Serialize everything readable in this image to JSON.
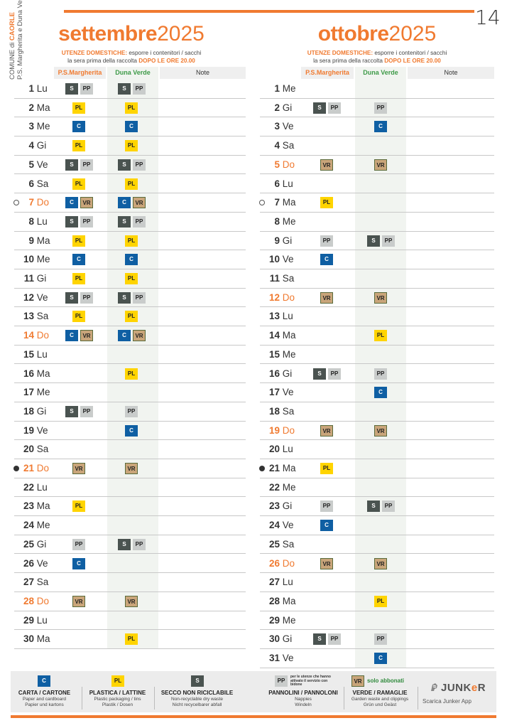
{
  "page_number": "14",
  "side": {
    "comune": "COMUNE di",
    "town": "CAORLE",
    "areas": "P.S. Margherita e Duna Verde"
  },
  "notice": {
    "lead": "UTENZE DOMESTICHE:",
    "text1": " esporre i contenitori / sacchi",
    "text2": "la sera prima della raccolta ",
    "time": "DOPO LE ORE 20.00"
  },
  "headers": {
    "ps": "P.S.Margherita",
    "dv": "Duna Verde",
    "note": "Note"
  },
  "colors": {
    "accent": "#f07a30",
    "green": "#3d9a47",
    "secco": "#4a5350",
    "pannolini": "#c9cccb",
    "plastica": "#ffd400",
    "carta": "#0f5fa3",
    "verde": "#c9a57a"
  },
  "months": [
    {
      "name": "settembre",
      "year": "2025",
      "days": [
        {
          "n": "1",
          "d": "Lu",
          "ps": [
            "S",
            "PP"
          ],
          "dv": [
            "S",
            "PP"
          ]
        },
        {
          "n": "2",
          "d": "Ma",
          "ps": [
            "PL"
          ],
          "dv": [
            "PL"
          ]
        },
        {
          "n": "3",
          "d": "Me",
          "ps": [
            "C"
          ],
          "dv": [
            "C"
          ]
        },
        {
          "n": "4",
          "d": "Gi",
          "ps": [
            "PL"
          ],
          "dv": [
            "PL"
          ]
        },
        {
          "n": "5",
          "d": "Ve",
          "ps": [
            "S",
            "PP"
          ],
          "dv": [
            "S",
            "PP"
          ]
        },
        {
          "n": "6",
          "d": "Sa",
          "ps": [
            "PL"
          ],
          "dv": [
            "PL"
          ]
        },
        {
          "n": "7",
          "d": "Do",
          "sun": true,
          "mark": "empty",
          "ps": [
            "C",
            "VR"
          ],
          "dv": [
            "C",
            "VR"
          ]
        },
        {
          "n": "8",
          "d": "Lu",
          "ps": [
            "S",
            "PP"
          ],
          "dv": [
            "S",
            "PP"
          ]
        },
        {
          "n": "9",
          "d": "Ma",
          "ps": [
            "PL"
          ],
          "dv": [
            "PL"
          ]
        },
        {
          "n": "10",
          "d": "Me",
          "ps": [
            "C"
          ],
          "dv": [
            "C"
          ]
        },
        {
          "n": "11",
          "d": "Gi",
          "ps": [
            "PL"
          ],
          "dv": [
            "PL"
          ]
        },
        {
          "n": "12",
          "d": "Ve",
          "ps": [
            "S",
            "PP"
          ],
          "dv": [
            "S",
            "PP"
          ]
        },
        {
          "n": "13",
          "d": "Sa",
          "ps": [
            "PL"
          ],
          "dv": [
            "PL"
          ]
        },
        {
          "n": "14",
          "d": "Do",
          "sun": true,
          "ps": [
            "C",
            "VR"
          ],
          "dv": [
            "C",
            "VR"
          ]
        },
        {
          "n": "15",
          "d": "Lu",
          "ps": [],
          "dv": []
        },
        {
          "n": "16",
          "d": "Ma",
          "ps": [],
          "dv": [
            "PL"
          ]
        },
        {
          "n": "17",
          "d": "Me",
          "ps": [],
          "dv": []
        },
        {
          "n": "18",
          "d": "Gi",
          "ps": [
            "S",
            "PP"
          ],
          "dv": [
            "PP"
          ]
        },
        {
          "n": "19",
          "d": "Ve",
          "ps": [],
          "dv": [
            "C"
          ]
        },
        {
          "n": "20",
          "d": "Sa",
          "ps": [],
          "dv": []
        },
        {
          "n": "21",
          "d": "Do",
          "sun": true,
          "mark": "full",
          "ps": [
            "VR"
          ],
          "dv": [
            "VR"
          ]
        },
        {
          "n": "22",
          "d": "Lu",
          "ps": [],
          "dv": []
        },
        {
          "n": "23",
          "d": "Ma",
          "ps": [
            "PL"
          ],
          "dv": []
        },
        {
          "n": "24",
          "d": "Me",
          "ps": [],
          "dv": []
        },
        {
          "n": "25",
          "d": "Gi",
          "ps": [
            "PP"
          ],
          "dv": [
            "S",
            "PP"
          ]
        },
        {
          "n": "26",
          "d": "Ve",
          "ps": [
            "C"
          ],
          "dv": []
        },
        {
          "n": "27",
          "d": "Sa",
          "ps": [],
          "dv": []
        },
        {
          "n": "28",
          "d": "Do",
          "sun": true,
          "ps": [
            "VR"
          ],
          "dv": [
            "VR"
          ]
        },
        {
          "n": "29",
          "d": "Lu",
          "ps": [],
          "dv": []
        },
        {
          "n": "30",
          "d": "Ma",
          "ps": [],
          "dv": [
            "PL"
          ]
        }
      ]
    },
    {
      "name": "ottobre",
      "year": "2025",
      "days": [
        {
          "n": "1",
          "d": "Me",
          "ps": [],
          "dv": []
        },
        {
          "n": "2",
          "d": "Gi",
          "ps": [
            "S",
            "PP"
          ],
          "dv": [
            "PP"
          ]
        },
        {
          "n": "3",
          "d": "Ve",
          "ps": [],
          "dv": [
            "C"
          ]
        },
        {
          "n": "4",
          "d": "Sa",
          "ps": [],
          "dv": []
        },
        {
          "n": "5",
          "d": "Do",
          "sun": true,
          "ps": [
            "VR"
          ],
          "dv": [
            "VR"
          ]
        },
        {
          "n": "6",
          "d": "Lu",
          "ps": [],
          "dv": []
        },
        {
          "n": "7",
          "d": "Ma",
          "mark": "empty",
          "ps": [
            "PL"
          ],
          "dv": []
        },
        {
          "n": "8",
          "d": "Me",
          "ps": [],
          "dv": []
        },
        {
          "n": "9",
          "d": "Gi",
          "ps": [
            "PP"
          ],
          "dv": [
            "S",
            "PP"
          ]
        },
        {
          "n": "10",
          "d": "Ve",
          "ps": [
            "C"
          ],
          "dv": []
        },
        {
          "n": "11",
          "d": "Sa",
          "ps": [],
          "dv": []
        },
        {
          "n": "12",
          "d": "Do",
          "sun": true,
          "ps": [
            "VR"
          ],
          "dv": [
            "VR"
          ]
        },
        {
          "n": "13",
          "d": "Lu",
          "ps": [],
          "dv": []
        },
        {
          "n": "14",
          "d": "Ma",
          "ps": [],
          "dv": [
            "PL"
          ]
        },
        {
          "n": "15",
          "d": "Me",
          "ps": [],
          "dv": []
        },
        {
          "n": "16",
          "d": "Gi",
          "ps": [
            "S",
            "PP"
          ],
          "dv": [
            "PP"
          ]
        },
        {
          "n": "17",
          "d": "Ve",
          "ps": [],
          "dv": [
            "C"
          ]
        },
        {
          "n": "18",
          "d": "Sa",
          "ps": [],
          "dv": []
        },
        {
          "n": "19",
          "d": "Do",
          "sun": true,
          "ps": [
            "VR"
          ],
          "dv": [
            "VR"
          ]
        },
        {
          "n": "20",
          "d": "Lu",
          "ps": [],
          "dv": []
        },
        {
          "n": "21",
          "d": "Ma",
          "mark": "full",
          "ps": [
            "PL"
          ],
          "dv": []
        },
        {
          "n": "22",
          "d": "Me",
          "ps": [],
          "dv": []
        },
        {
          "n": "23",
          "d": "Gi",
          "ps": [
            "PP"
          ],
          "dv": [
            "S",
            "PP"
          ]
        },
        {
          "n": "24",
          "d": "Ve",
          "ps": [
            "C"
          ],
          "dv": []
        },
        {
          "n": "25",
          "d": "Sa",
          "ps": [],
          "dv": []
        },
        {
          "n": "26",
          "d": "Do",
          "sun": true,
          "ps": [
            "VR"
          ],
          "dv": [
            "VR"
          ]
        },
        {
          "n": "27",
          "d": "Lu",
          "ps": [],
          "dv": []
        },
        {
          "n": "28",
          "d": "Ma",
          "ps": [],
          "dv": [
            "PL"
          ]
        },
        {
          "n": "29",
          "d": "Me",
          "ps": [],
          "dv": []
        },
        {
          "n": "30",
          "d": "Gi",
          "ps": [
            "S",
            "PP"
          ],
          "dv": [
            "PP"
          ]
        },
        {
          "n": "31",
          "d": "Ve",
          "ps": [],
          "dv": [
            "C"
          ]
        }
      ]
    }
  ],
  "legend": {
    "carta": {
      "code": "C",
      "title": "CARTA / CARTONE",
      "sub1": "Paper and cardboard",
      "sub2": "Papier und kartons"
    },
    "plastica": {
      "code": "PL",
      "title": "PLASTICA / LATTINE",
      "sub1": "Plastic packaging / tins",
      "sub2": "Plastik / Dosen"
    },
    "secco": {
      "code": "S",
      "title": "SECCO NON RICICLABILE",
      "sub1": "Non-recyclable dry waste",
      "sub2": "Nicht recycelbarer abfall"
    },
    "pannolini": {
      "code": "PP",
      "note": "per le utenze che hanno attivato il servizio con bidone",
      "title": "PANNOLINI / PANNOLONI",
      "sub1": "Nappies",
      "sub2": "Windeln"
    },
    "verde": {
      "code": "VR",
      "solo": "solo abbonati",
      "title": "VERDE / RAMAGLIE",
      "sub1": "Garden waste and clippings",
      "sub2": "Grün und Geäst"
    },
    "junker": {
      "logo_a": "JUNK",
      "logo_b": "e",
      "logo_c": "R",
      "app": "Scarica Junker App"
    }
  }
}
